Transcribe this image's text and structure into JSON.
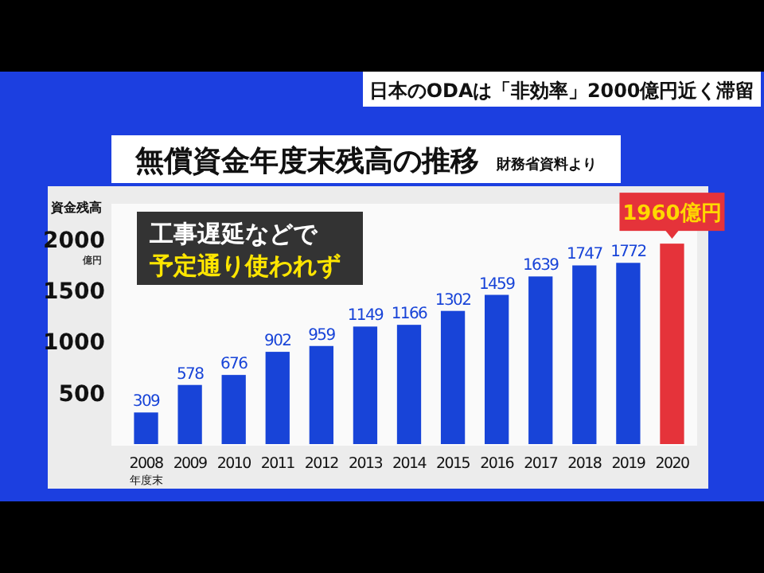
{
  "chart_data": {
    "type": "bar",
    "title": "無償資金年度末残高の推移",
    "subtitle": "財務省資料より",
    "ylabel": "資金残高",
    "xlabel": "年度末",
    "annotations": [
      "日本のODAは「非効率」2000億円近く滞留",
      "工事遅延などで",
      "予定通り使われず",
      "億円"
    ],
    "categories": [
      "2008",
      "2009",
      "2010",
      "2011",
      "2012",
      "2013",
      "2014",
      "2015",
      "2016",
      "2017",
      "2018",
      "2019",
      "2020"
    ],
    "values": [
      309,
      578,
      676,
      902,
      959,
      1149,
      1166,
      1302,
      1459,
      1639,
      1747,
      1772,
      1960
    ],
    "colors": [
      "#1844d8",
      "#1844d8",
      "#1844d8",
      "#1844d8",
      "#1844d8",
      "#1844d8",
      "#1844d8",
      "#1844d8",
      "#1844d8",
      "#1844d8",
      "#1844d8",
      "#1844d8",
      "#e5333a"
    ],
    "value_labels": [
      "309",
      "578",
      "676",
      "902",
      "959",
      "1149",
      "1166",
      "1302",
      "1459",
      "1639",
      "1747",
      "1772",
      "1960億円"
    ],
    "ylim": [
      0,
      2350
    ],
    "yticks": [
      500,
      1000,
      1500,
      2000
    ],
    "grid": false
  }
}
